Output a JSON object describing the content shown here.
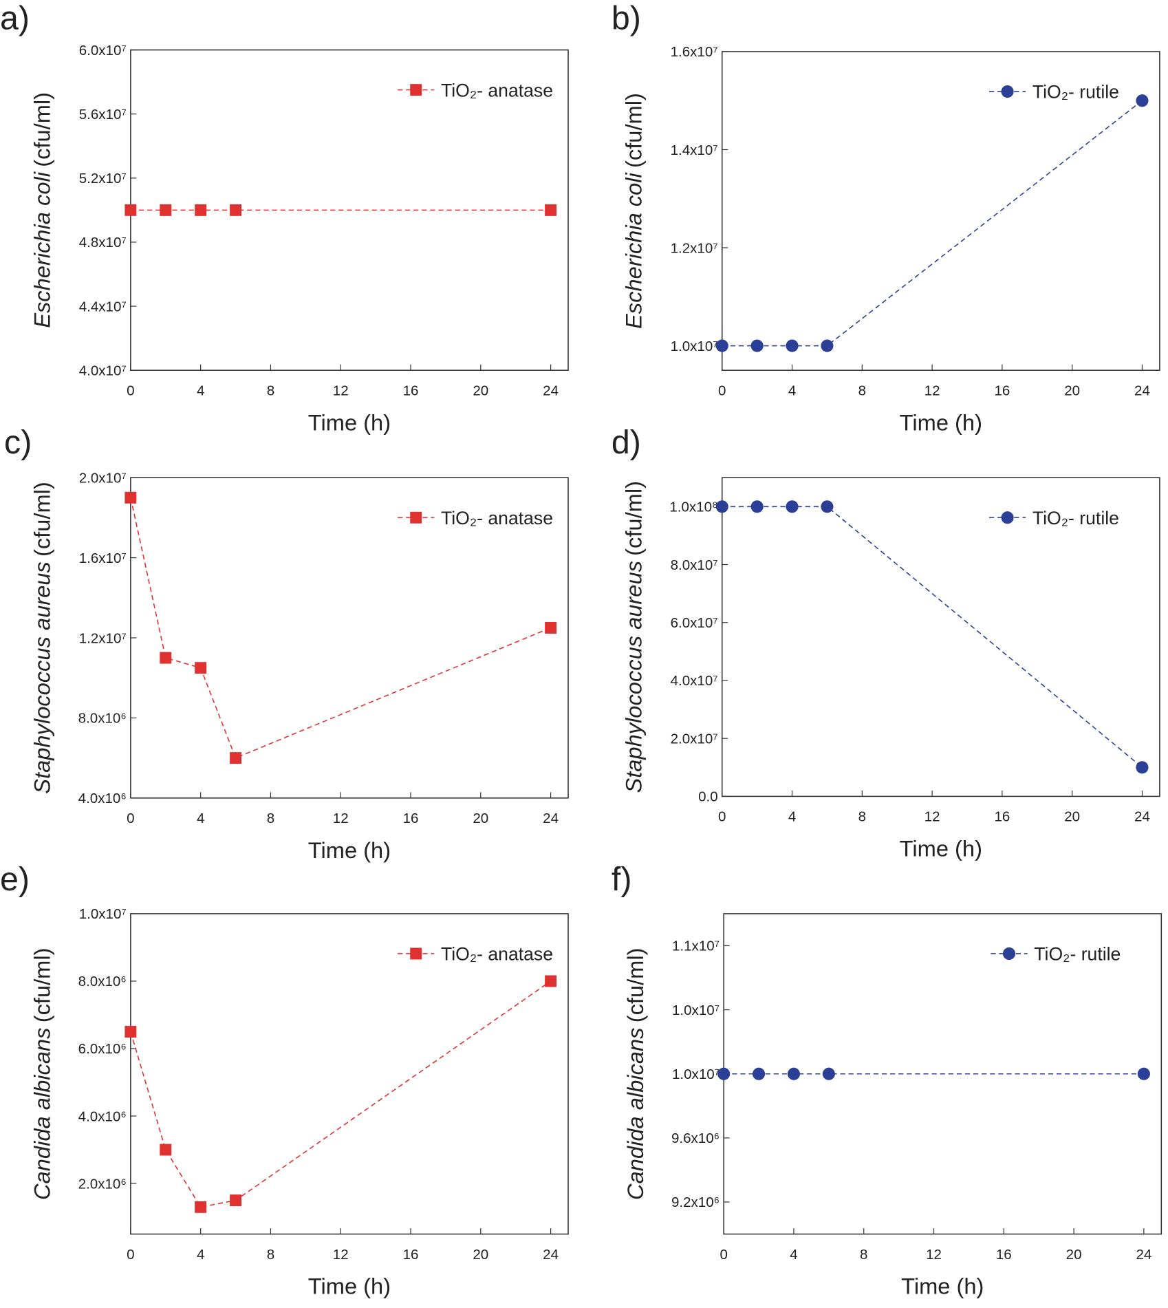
{
  "chart_data": [
    {
      "type": "line",
      "panel": "a)",
      "ylabel": [
        "Escherichia coli",
        "(cfu/ml)"
      ],
      "xlabel": "Time (h)",
      "x": [
        0,
        2,
        4,
        6,
        24
      ],
      "xlim": [
        0,
        25
      ],
      "xticks": [
        0,
        4,
        8,
        12,
        16,
        20,
        24
      ],
      "ylim": [
        40000000,
        60000000
      ],
      "yticks": [
        {
          "value": 40000000,
          "label": "4.0x10⁷"
        },
        {
          "value": 44000000,
          "label": "4.4x10⁷"
        },
        {
          "value": 48000000,
          "label": "4.8x10⁷"
        },
        {
          "value": 52000000,
          "label": "5.2x10⁷"
        },
        {
          "value": 56000000,
          "label": "5.6x10⁷"
        },
        {
          "value": 60000000,
          "label": "6.0x10⁷"
        }
      ],
      "legend": "upper right",
      "series": [
        {
          "name": "TiO₂- anatase",
          "color": "#e03131",
          "marker": "square",
          "values": [
            50000000,
            50000000,
            50000000,
            50000000,
            50000000
          ]
        }
      ]
    },
    {
      "type": "line",
      "panel": "b)",
      "ylabel": [
        "Escherichia coli",
        "(cfu/ml)"
      ],
      "xlabel": "Time (h)",
      "x": [
        0,
        2,
        4,
        6,
        24
      ],
      "xlim": [
        0,
        25
      ],
      "xticks": [
        0,
        4,
        8,
        12,
        16,
        20,
        24
      ],
      "ylim": [
        9500000,
        16000000
      ],
      "yticks": [
        {
          "value": 10000000,
          "label": "1.0x10⁷"
        },
        {
          "value": 12000000,
          "label": "1.2x10⁷"
        },
        {
          "value": 14000000,
          "label": "1.4x10⁷"
        },
        {
          "value": 16000000,
          "label": "1.6x10⁷"
        }
      ],
      "legend": "upper right",
      "series": [
        {
          "name": "TiO₂- rutile",
          "color": "#2b3f97",
          "marker": "circle",
          "values": [
            10000000,
            10000000,
            10000000,
            10000000,
            15000000
          ]
        }
      ]
    },
    {
      "type": "line",
      "panel": "c)",
      "ylabel": [
        "Staphylococcus aureus",
        "(cfu/ml)"
      ],
      "xlabel": "Time (h)",
      "x": [
        0,
        2,
        4,
        6,
        24
      ],
      "xlim": [
        0,
        25
      ],
      "xticks": [
        0,
        4,
        8,
        12,
        16,
        20,
        24
      ],
      "ylim": [
        4000000,
        20000000
      ],
      "yticks": [
        {
          "value": 4000000,
          "label": "4.0x10⁶"
        },
        {
          "value": 8000000,
          "label": "8.0x10⁶"
        },
        {
          "value": 12000000,
          "label": "1.2x10⁷"
        },
        {
          "value": 16000000,
          "label": "1.6x10⁷"
        },
        {
          "value": 20000000,
          "label": "2.0x10⁷"
        }
      ],
      "legend": "upper right",
      "series": [
        {
          "name": "TiO₂- anatase",
          "color": "#e03131",
          "marker": "square",
          "values": [
            19000000,
            11000000,
            10500000,
            6000000,
            12500000
          ]
        }
      ]
    },
    {
      "type": "line",
      "panel": "d)",
      "ylabel": [
        "Staphylococcus aureus",
        "(cfu/ml)"
      ],
      "xlabel": "Time (h)",
      "x": [
        0,
        2,
        4,
        6,
        24
      ],
      "xlim": [
        0,
        25
      ],
      "xticks": [
        0,
        4,
        8,
        12,
        16,
        20,
        24
      ],
      "ylim": [
        0,
        110000000
      ],
      "yticks": [
        {
          "value": 0,
          "label": "0.0"
        },
        {
          "value": 20000000,
          "label": "2.0x10⁷"
        },
        {
          "value": 40000000,
          "label": "4.0x10⁷"
        },
        {
          "value": 60000000,
          "label": "6.0x10⁷"
        },
        {
          "value": 80000000,
          "label": "8.0x10⁷"
        },
        {
          "value": 100000000,
          "label": "1.0x10⁸"
        }
      ],
      "legend": "upper right",
      "series": [
        {
          "name": "TiO₂- rutile",
          "color": "#2b3f97",
          "marker": "circle",
          "values": [
            100000000,
            100000000,
            100000000,
            100000000,
            10000000
          ]
        }
      ]
    },
    {
      "type": "line",
      "panel": "e)",
      "ylabel": [
        "Candida albicans",
        "(cfu/ml)"
      ],
      "xlabel": "Time (h)",
      "x": [
        0,
        2,
        4,
        6,
        24
      ],
      "xlim": [
        0,
        25
      ],
      "xticks": [
        0,
        4,
        8,
        12,
        16,
        20,
        24
      ],
      "ylim": [
        500000,
        10000000
      ],
      "yticks": [
        {
          "value": 2000000,
          "label": "2.0x10⁶"
        },
        {
          "value": 4000000,
          "label": "4.0x10⁶"
        },
        {
          "value": 6000000,
          "label": "6.0x10⁶"
        },
        {
          "value": 8000000,
          "label": "8.0x10⁶"
        },
        {
          "value": 10000000,
          "label": "1.0x10⁷"
        }
      ],
      "legend": "upper right",
      "series": [
        {
          "name": "TiO₂- anatase",
          "color": "#e03131",
          "marker": "square",
          "values": [
            6500000,
            3000000,
            1300000,
            1500000,
            8000000
          ]
        }
      ]
    },
    {
      "type": "line",
      "panel": "f)",
      "ylabel": [
        "Candida albicans",
        "(cfu/ml)"
      ],
      "xlabel": "Time (h)",
      "x": [
        0,
        2,
        4,
        6,
        24
      ],
      "xlim": [
        0,
        25
      ],
      "xticks": [
        0,
        4,
        8,
        12,
        16,
        20,
        24
      ],
      "ylim": [
        9000000,
        11000000
      ],
      "yticks": [
        {
          "value": 9200000,
          "label": "9.2x10⁶"
        },
        {
          "value": 9600000,
          "label": "9.6x10⁶"
        },
        {
          "value": 10000000,
          "label": "1.0x10⁷"
        },
        {
          "value": 10400000,
          "label": "1.0x10⁷"
        },
        {
          "value": 10800000,
          "label": "1.1x10⁷"
        }
      ],
      "legend": "upper right",
      "series": [
        {
          "name": "TiO₂- rutile",
          "color": "#2b3f97",
          "marker": "circle",
          "values": [
            10000000,
            10000000,
            10000000,
            10000000,
            10000000
          ]
        }
      ]
    }
  ]
}
